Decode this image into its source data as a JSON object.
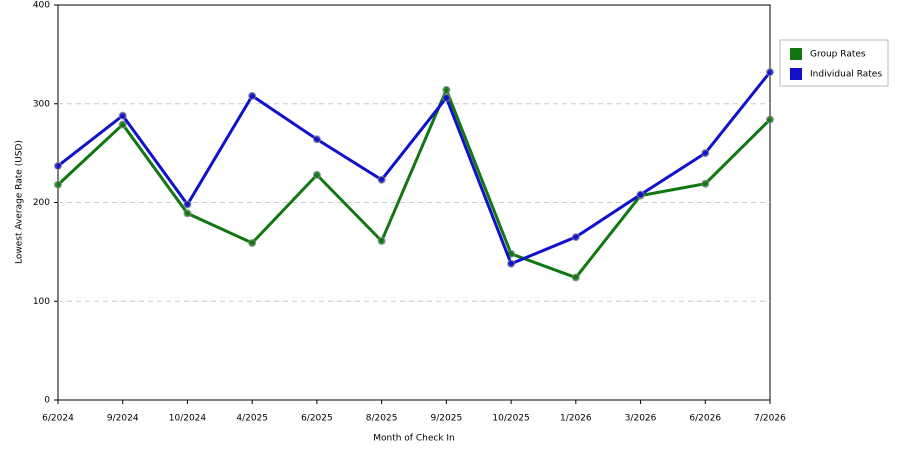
{
  "chart_data": {
    "type": "line",
    "x_label": "Month of Check In",
    "y_label": "Lowest Average Rate (USD)",
    "categories": [
      "6/2024",
      "9/2024",
      "10/2024",
      "4/2025",
      "6/2025",
      "8/2025",
      "9/2025",
      "10/2025",
      "1/2026",
      "3/2026",
      "6/2026",
      "7/2026"
    ],
    "series": [
      {
        "name": "Group Rates",
        "color": "#117711",
        "values": [
          218,
          279,
          189,
          159,
          228,
          161,
          314,
          148,
          124,
          207,
          219,
          284
        ]
      },
      {
        "name": "Individual Rates",
        "color": "#1111cc",
        "values": [
          237,
          288,
          198,
          308,
          264,
          223,
          306,
          138,
          165,
          208,
          250,
          332
        ]
      }
    ],
    "ylim": [
      0,
      400
    ],
    "yticks": [
      0,
      100,
      200,
      300,
      400
    ],
    "grid": true,
    "legend": "right"
  }
}
